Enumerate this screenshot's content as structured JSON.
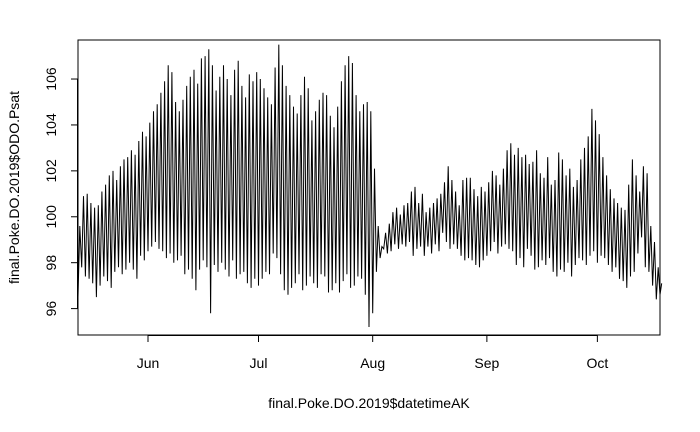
{
  "chart_data": {
    "type": "line",
    "title": "",
    "xlabel": "final.Poke.DO.2019$datetimeAK",
    "ylabel": "final.Poke.DO.2019$ODO.Psat",
    "x_range": [
      "2019-05-13",
      "2019-10-18"
    ],
    "ylim": [
      94.85,
      107.7
    ],
    "x_ticks": [
      {
        "date": "2019-06-01",
        "label": "Jun"
      },
      {
        "date": "2019-07-01",
        "label": "Jul"
      },
      {
        "date": "2019-08-01",
        "label": "Aug"
      },
      {
        "date": "2019-09-01",
        "label": "Sep"
      },
      {
        "date": "2019-10-01",
        "label": "Oct"
      }
    ],
    "y_ticks": [
      96,
      98,
      100,
      102,
      104,
      106
    ],
    "grid": false,
    "legend": "none",
    "line_color": "#000000",
    "series": [
      {
        "interval": "daily",
        "x": [
          "2019-05-13",
          "2019-05-14",
          "2019-05-15",
          "2019-05-16",
          "2019-05-17",
          "2019-05-18",
          "2019-05-19",
          "2019-05-20",
          "2019-05-21",
          "2019-05-22",
          "2019-05-23",
          "2019-05-24",
          "2019-05-25",
          "2019-05-26",
          "2019-05-27",
          "2019-05-28",
          "2019-05-29",
          "2019-05-30",
          "2019-05-31",
          "2019-06-01",
          "2019-06-02",
          "2019-06-03",
          "2019-06-04",
          "2019-06-05",
          "2019-06-06",
          "2019-06-07",
          "2019-06-08",
          "2019-06-09",
          "2019-06-10",
          "2019-06-11",
          "2019-06-12",
          "2019-06-13",
          "2019-06-14",
          "2019-06-15",
          "2019-06-16",
          "2019-06-17",
          "2019-06-18",
          "2019-06-19",
          "2019-06-20",
          "2019-06-21",
          "2019-06-22",
          "2019-06-23",
          "2019-06-24",
          "2019-06-25",
          "2019-06-26",
          "2019-06-27",
          "2019-06-28",
          "2019-06-29",
          "2019-06-30",
          "2019-07-01",
          "2019-07-02",
          "2019-07-03",
          "2019-07-04",
          "2019-07-05",
          "2019-07-06",
          "2019-07-07",
          "2019-07-08",
          "2019-07-09",
          "2019-07-10",
          "2019-07-11",
          "2019-07-12",
          "2019-07-13",
          "2019-07-14",
          "2019-07-15",
          "2019-07-16",
          "2019-07-17",
          "2019-07-18",
          "2019-07-19",
          "2019-07-20",
          "2019-07-21",
          "2019-07-22",
          "2019-07-23",
          "2019-07-24",
          "2019-07-25",
          "2019-07-26",
          "2019-07-27",
          "2019-07-28",
          "2019-07-29",
          "2019-07-30",
          "2019-07-31",
          "2019-08-01",
          "2019-08-02",
          "2019-08-03",
          "2019-08-04",
          "2019-08-05",
          "2019-08-06",
          "2019-08-07",
          "2019-08-08",
          "2019-08-09",
          "2019-08-10",
          "2019-08-11",
          "2019-08-12",
          "2019-08-13",
          "2019-08-14",
          "2019-08-15",
          "2019-08-16",
          "2019-08-17",
          "2019-08-18",
          "2019-08-19",
          "2019-08-20",
          "2019-08-21",
          "2019-08-22",
          "2019-08-23",
          "2019-08-24",
          "2019-08-25",
          "2019-08-26",
          "2019-08-27",
          "2019-08-28",
          "2019-08-29",
          "2019-08-30",
          "2019-08-31",
          "2019-09-01",
          "2019-09-02",
          "2019-09-03",
          "2019-09-04",
          "2019-09-05",
          "2019-09-06",
          "2019-09-07",
          "2019-09-08",
          "2019-09-09",
          "2019-09-10",
          "2019-09-11",
          "2019-09-12",
          "2019-09-13",
          "2019-09-14",
          "2019-09-15",
          "2019-09-16",
          "2019-09-17",
          "2019-09-18",
          "2019-09-19",
          "2019-09-20",
          "2019-09-21",
          "2019-09-22",
          "2019-09-23",
          "2019-09-24",
          "2019-09-25",
          "2019-09-26",
          "2019-09-27",
          "2019-09-28",
          "2019-09-29",
          "2019-09-30",
          "2019-10-01",
          "2019-10-02",
          "2019-10-03",
          "2019-10-04",
          "2019-10-05",
          "2019-10-06",
          "2019-10-07",
          "2019-10-08",
          "2019-10-09",
          "2019-10-10",
          "2019-10-11",
          "2019-10-12",
          "2019-10-13",
          "2019-10-14",
          "2019-10-15",
          "2019-10-16",
          "2019-10-17",
          "2019-10-18"
        ],
        "max": [
          99.6,
          100.9,
          101.0,
          100.6,
          100.4,
          100.5,
          101.1,
          101.4,
          101.8,
          102.0,
          101.6,
          102.2,
          102.5,
          102.6,
          102.9,
          102.7,
          103.3,
          103.7,
          103.5,
          104.1,
          104.6,
          104.9,
          105.4,
          105.9,
          106.6,
          106.3,
          105.0,
          104.6,
          105.1,
          105.7,
          106.1,
          106.4,
          105.8,
          106.9,
          107.0,
          107.3,
          106.6,
          105.5,
          106.1,
          106.6,
          106.0,
          105.3,
          106.4,
          106.8,
          105.7,
          105.2,
          106.2,
          105.9,
          106.3,
          106.0,
          105.6,
          105.2,
          104.9,
          106.5,
          107.5,
          106.6,
          105.7,
          105.3,
          104.8,
          104.5,
          105.3,
          106.1,
          105.6,
          104.2,
          104.6,
          105.1,
          105.4,
          105.3,
          104.4,
          103.9,
          104.8,
          105.9,
          106.6,
          107.0,
          106.7,
          105.3,
          104.6,
          104.9,
          105.0,
          104.6,
          102.1,
          99.6,
          98.7,
          99.3,
          99.7,
          100.2,
          100.4,
          100.1,
          100.5,
          100.6,
          101.1,
          101.3,
          100.6,
          101.0,
          100.2,
          100.4,
          100.6,
          100.8,
          101.0,
          101.5,
          102.2,
          101.6,
          101.1,
          100.5,
          101.6,
          101.7,
          101.7,
          101.2,
          100.9,
          101.3,
          101.1,
          101.5,
          102.0,
          101.8,
          101.4,
          102.1,
          102.9,
          103.2,
          102.7,
          103.0,
          102.6,
          102.7,
          102.3,
          102.4,
          102.9,
          101.9,
          101.7,
          102.6,
          101.4,
          101.6,
          102.8,
          102.5,
          101.8,
          102.1,
          101.3,
          101.6,
          102.5,
          103.0,
          103.5,
          104.7,
          104.2,
          103.6,
          102.6,
          101.8,
          101.2,
          100.8,
          100.6,
          100.4,
          100.3,
          101.4,
          102.5,
          101.8,
          101.1,
          102.2,
          101.9,
          99.6,
          98.9,
          97.8,
          97.1
        ],
        "min": [
          96.5,
          97.8,
          97.4,
          97.3,
          97.1,
          96.5,
          97.0,
          97.4,
          97.2,
          96.9,
          97.6,
          97.8,
          97.5,
          97.7,
          98.0,
          97.7,
          97.3,
          98.3,
          98.1,
          98.5,
          98.7,
          98.9,
          98.6,
          98.5,
          98.2,
          98.4,
          98.0,
          98.1,
          98.3,
          97.5,
          97.7,
          97.3,
          96.8,
          97.7,
          98.1,
          97.8,
          95.8,
          97.9,
          97.6,
          98.0,
          97.7,
          97.4,
          98.1,
          97.3,
          97.5,
          97.6,
          97.1,
          96.9,
          97.3,
          97.0,
          97.3,
          97.6,
          97.5,
          98.4,
          98.2,
          97.5,
          96.8,
          96.6,
          96.9,
          97.1,
          97.5,
          96.8,
          97.0,
          97.4,
          97.1,
          96.9,
          97.5,
          97.4,
          96.7,
          96.8,
          97.1,
          96.7,
          97.2,
          97.5,
          96.9,
          97.0,
          97.4,
          97.3,
          96.6,
          95.2,
          95.8,
          97.6,
          98.2,
          98.6,
          98.4,
          98.5,
          98.8,
          98.6,
          98.8,
          98.7,
          98.9,
          98.3,
          98.6,
          98.7,
          98.3,
          98.7,
          98.4,
          98.8,
          98.5,
          99.3,
          98.9,
          98.6,
          98.8,
          98.6,
          98.3,
          98.1,
          98.2,
          98.1,
          97.9,
          97.8,
          98.1,
          98.3,
          98.5,
          98.9,
          98.4,
          98.7,
          98.8,
          98.6,
          98.5,
          97.9,
          98.2,
          97.8,
          98.6,
          98.3,
          97.7,
          97.8,
          98.1,
          97.9,
          98.2,
          97.6,
          97.4,
          97.7,
          97.6,
          98.0,
          97.4,
          97.9,
          98.2,
          98.1,
          97.9,
          98.3,
          98.5,
          98.0,
          98.3,
          98.2,
          97.9,
          97.6,
          97.8,
          97.3,
          97.2,
          96.9,
          97.4,
          97.6,
          98.4,
          99.1,
          97.8,
          97.6,
          97.0,
          96.4,
          96.6
        ]
      }
    ]
  }
}
